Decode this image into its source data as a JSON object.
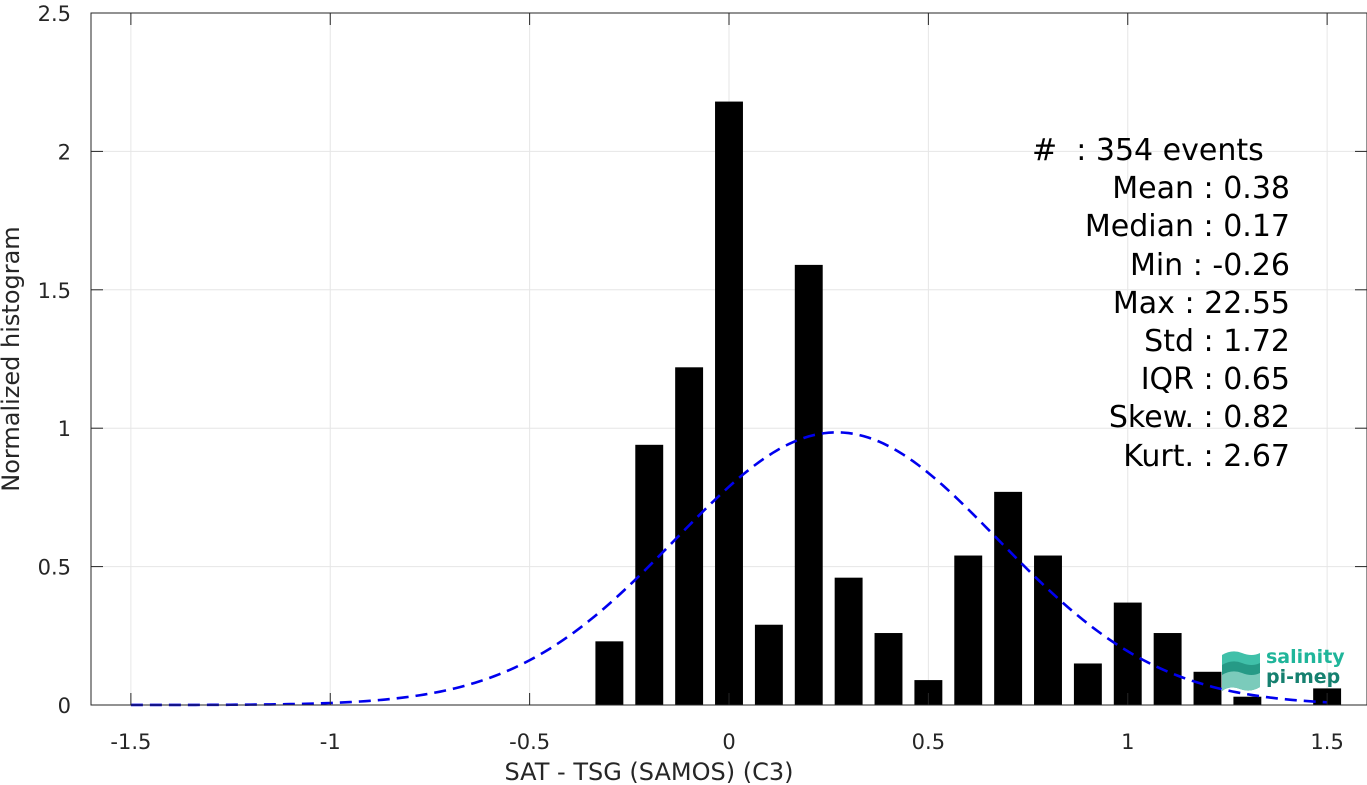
{
  "chart_data": {
    "type": "bar",
    "xlabel": "SAT - TSG (SAMOS) (C3)",
    "ylabel": "Normalized histogram",
    "xlim": [
      -1.6,
      1.6
    ],
    "ylim": [
      0,
      2.5
    ],
    "grid": true,
    "x_ticks": [
      -1.5,
      -1,
      -0.5,
      0,
      0.5,
      1,
      1.5
    ],
    "x_tick_labels": [
      "-1.5",
      "-1",
      "-0.5",
      "0",
      "0.5",
      "1",
      "1.5"
    ],
    "y_ticks": [
      0,
      0.5,
      1,
      1.5,
      2,
      2.5
    ],
    "y_tick_labels": [
      "0",
      "0.5",
      "1",
      "1.5",
      "2",
      "2.5"
    ],
    "bar_width": 0.07,
    "bars": {
      "x": [
        -0.3,
        -0.2,
        -0.1,
        0.0,
        0.1,
        0.2,
        0.3,
        0.4,
        0.5,
        0.6,
        0.7,
        0.8,
        0.9,
        1.0,
        1.1,
        1.2,
        1.3,
        1.5
      ],
      "values": [
        0.23,
        0.94,
        1.22,
        2.18,
        0.29,
        1.59,
        0.46,
        0.26,
        0.09,
        0.54,
        0.77,
        0.54,
        0.15,
        0.37,
        0.26,
        0.12,
        0.03,
        0.06
      ],
      "color": "#000000"
    },
    "fit_curve": {
      "style": "dashed",
      "color": "#0000ee",
      "mean": 0.27,
      "std": 0.405,
      "peak": 0.985,
      "x_range": [
        -1.5,
        1.5
      ]
    },
    "stats": [
      "#  : 354 events",
      "Mean : 0.38",
      "Median : 0.17",
      "Min : -0.26",
      "Max : 22.55",
      "Std : 1.72",
      "IQR : 0.65",
      "Skew. : 0.82",
      "Kurt. : 2.67"
    ]
  },
  "logo": {
    "line1": "salinity",
    "line2": "pi-mep",
    "colors": [
      "#1fb59a",
      "#15806f"
    ]
  }
}
